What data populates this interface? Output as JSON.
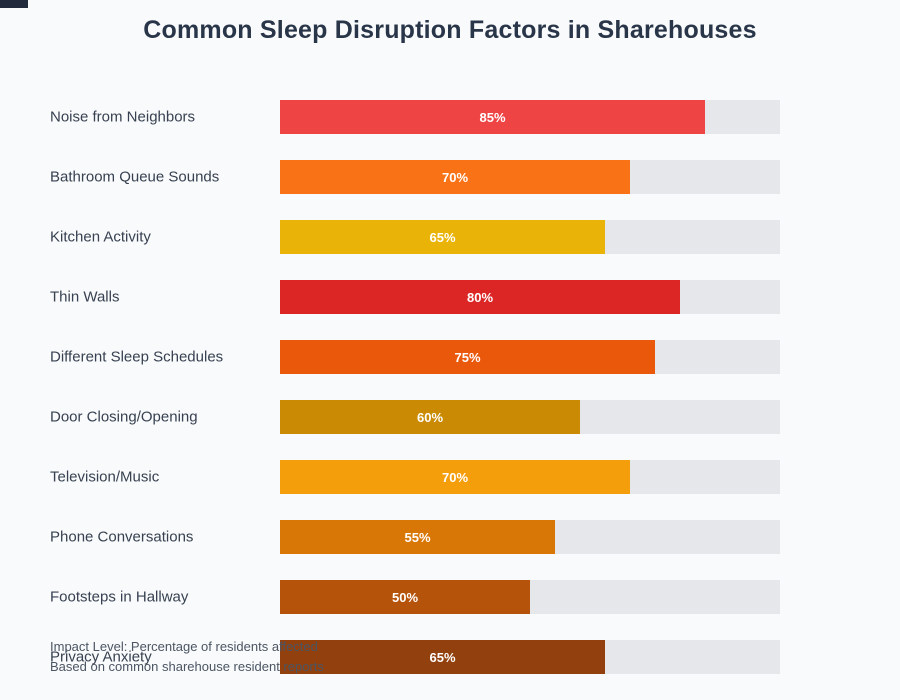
{
  "title": "Common Sleep Disruption Factors in Sharehouses",
  "footer": {
    "impact_note": "Impact Level: Percentage of residents affected",
    "source_note": "Based on common sharehouse resident reports"
  },
  "colors": {
    "page_bg": "#f9fafb",
    "track_bg": "#e5e7eb",
    "title_text": "#293548",
    "label_text": "#374151",
    "value_text": "#ffffff",
    "footer_text": "#4b5563",
    "corner_mark": "#212b3d"
  },
  "chart_data": {
    "type": "bar",
    "orientation": "horizontal",
    "title": "Common Sleep Disruption Factors in Sharehouses",
    "categories": [
      "Noise from Neighbors",
      "Bathroom Queue Sounds",
      "Kitchen Activity",
      "Thin Walls",
      "Different Sleep Schedules",
      "Door Closing/Opening",
      "Television/Music",
      "Phone Conversations",
      "Footsteps in Hallway",
      "Privacy Anxiety"
    ],
    "values": [
      85,
      70,
      65,
      80,
      75,
      60,
      70,
      55,
      50,
      65
    ],
    "value_suffix": "%",
    "xlabel": "",
    "ylabel": "",
    "xlim": [
      0,
      100
    ],
    "grid": false,
    "legend": false,
    "value_labels_position": "centered-in-bar",
    "bar_colors": [
      "#ef4444",
      "#f97316",
      "#eab308",
      "#dc2626",
      "#ea580c",
      "#ca8a04",
      "#f59e0b",
      "#d97706",
      "#b45309",
      "#92400e"
    ],
    "annotations": [
      "Impact Level: Percentage of residents affected",
      "Based on common sharehouse resident reports"
    ]
  }
}
